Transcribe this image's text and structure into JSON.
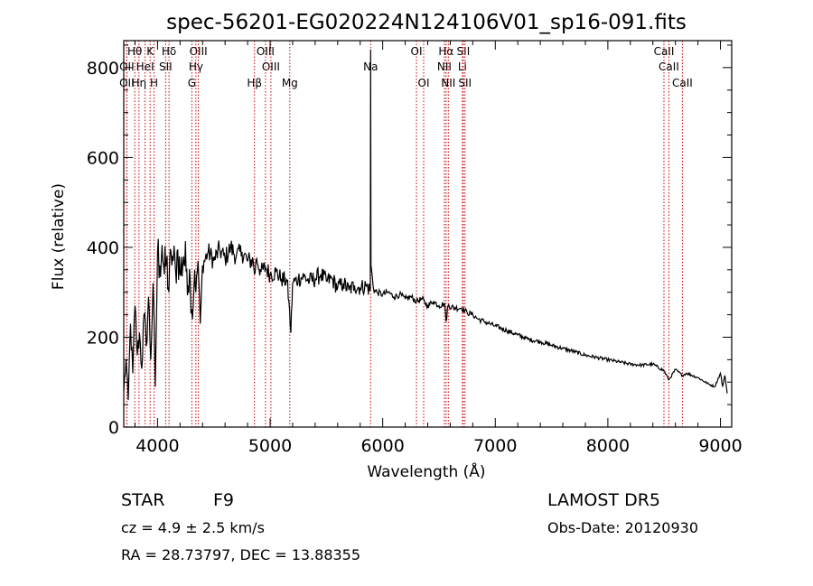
{
  "chart_data": {
    "type": "line",
    "title": "spec-56201-EG020224N124106V01_sp16-091.fits",
    "xlabel": "Wavelength (Å)",
    "ylabel": "Flux (relative)",
    "xlim": [
      3700,
      9100
    ],
    "ylim": [
      0,
      860
    ],
    "xticks": [
      4000,
      5000,
      6000,
      7000,
      8000,
      9000
    ],
    "yticks": [
      0,
      200,
      400,
      600,
      800
    ],
    "line_color": "#000000",
    "marker_color": "#cc0000",
    "spectrum_points": [
      [
        3700,
        80
      ],
      [
        3720,
        150
      ],
      [
        3740,
        60
      ],
      [
        3760,
        230
      ],
      [
        3780,
        120
      ],
      [
        3800,
        270
      ],
      [
        3820,
        160
      ],
      [
        3840,
        210
      ],
      [
        3860,
        130
      ],
      [
        3880,
        250
      ],
      [
        3900,
        180
      ],
      [
        3920,
        290
      ],
      [
        3940,
        150
      ],
      [
        3960,
        320
      ],
      [
        3980,
        90
      ],
      [
        4000,
        390
      ],
      [
        4020,
        360
      ],
      [
        4040,
        405
      ],
      [
        4060,
        340
      ],
      [
        4080,
        370
      ],
      [
        4101,
        300
      ],
      [
        4120,
        390
      ],
      [
        4140,
        370
      ],
      [
        4160,
        350
      ],
      [
        4180,
        395
      ],
      [
        4200,
        340
      ],
      [
        4230,
        380
      ],
      [
        4260,
        350
      ],
      [
        4290,
        330
      ],
      [
        4310,
        240
      ],
      [
        4330,
        350
      ],
      [
        4340,
        300
      ],
      [
        4360,
        370
      ],
      [
        4380,
        230
      ],
      [
        4400,
        360
      ],
      [
        4450,
        390
      ],
      [
        4500,
        370
      ],
      [
        4550,
        395
      ],
      [
        4600,
        375
      ],
      [
        4650,
        400
      ],
      [
        4700,
        380
      ],
      [
        4750,
        390
      ],
      [
        4800,
        370
      ],
      [
        4850,
        370
      ],
      [
        4861,
        340
      ],
      [
        4880,
        375
      ],
      [
        4920,
        345
      ],
      [
        4960,
        355
      ],
      [
        5000,
        340
      ],
      [
        5050,
        345
      ],
      [
        5100,
        330
      ],
      [
        5150,
        325
      ],
      [
        5167,
        280
      ],
      [
        5184,
        210
      ],
      [
        5200,
        320
      ],
      [
        5250,
        330
      ],
      [
        5300,
        335
      ],
      [
        5350,
        325
      ],
      [
        5400,
        330
      ],
      [
        5450,
        340
      ],
      [
        5500,
        325
      ],
      [
        5550,
        330
      ],
      [
        5600,
        310
      ],
      [
        5650,
        320
      ],
      [
        5700,
        305
      ],
      [
        5750,
        315
      ],
      [
        5800,
        310
      ],
      [
        5850,
        315
      ],
      [
        5890,
        305
      ],
      [
        5893,
        840
      ],
      [
        5896,
        360
      ],
      [
        5920,
        305
      ],
      [
        5950,
        300
      ],
      [
        6000,
        295
      ],
      [
        6050,
        300
      ],
      [
        6100,
        290
      ],
      [
        6150,
        295
      ],
      [
        6200,
        285
      ],
      [
        6250,
        290
      ],
      [
        6300,
        280
      ],
      [
        6350,
        285
      ],
      [
        6400,
        270
      ],
      [
        6450,
        280
      ],
      [
        6500,
        270
      ],
      [
        6550,
        275
      ],
      [
        6563,
        235
      ],
      [
        6580,
        270
      ],
      [
        6650,
        265
      ],
      [
        6700,
        265
      ],
      [
        6750,
        255
      ],
      [
        6800,
        250
      ],
      [
        6850,
        240
      ],
      [
        6900,
        235
      ],
      [
        6950,
        230
      ],
      [
        7000,
        225
      ],
      [
        7100,
        215
      ],
      [
        7200,
        205
      ],
      [
        7300,
        195
      ],
      [
        7400,
        190
      ],
      [
        7500,
        182
      ],
      [
        7600,
        175
      ],
      [
        7700,
        168
      ],
      [
        7800,
        160
      ],
      [
        7900,
        155
      ],
      [
        8000,
        150
      ],
      [
        8100,
        145
      ],
      [
        8200,
        140
      ],
      [
        8300,
        138
      ],
      [
        8400,
        140
      ],
      [
        8500,
        125
      ],
      [
        8542,
        105
      ],
      [
        8600,
        128
      ],
      [
        8662,
        115
      ],
      [
        8700,
        120
      ],
      [
        8800,
        110
      ],
      [
        8900,
        95
      ],
      [
        8950,
        90
      ],
      [
        9000,
        120
      ],
      [
        9020,
        90
      ],
      [
        9040,
        115
      ],
      [
        9060,
        75
      ]
    ],
    "lines": [
      {
        "label": "Hθ",
        "wave": 3798,
        "row": 1
      },
      {
        "label": "OII",
        "wave": 3727,
        "row": 2
      },
      {
        "label": "OII",
        "wave": 3727,
        "row": 3
      },
      {
        "label": "HeI",
        "wave": 3889,
        "row": 2
      },
      {
        "label": "Hη",
        "wave": 3835,
        "row": 3
      },
      {
        "label": "K",
        "wave": 3934,
        "row": 1
      },
      {
        "label": "H",
        "wave": 3969,
        "row": 3
      },
      {
        "label": "SII",
        "wave": 4072,
        "row": 2
      },
      {
        "label": "Hδ",
        "wave": 4102,
        "row": 1
      },
      {
        "label": "OIII",
        "wave": 4363,
        "row": 1
      },
      {
        "label": "Hγ",
        "wave": 4341,
        "row": 2
      },
      {
        "label": "G",
        "wave": 4305,
        "row": 3
      },
      {
        "label": "OIII",
        "wave": 4959,
        "row": 1
      },
      {
        "label": "OIII",
        "wave": 5007,
        "row": 2
      },
      {
        "label": "Hβ",
        "wave": 4861,
        "row": 3
      },
      {
        "label": "Mg",
        "wave": 5175,
        "row": 3
      },
      {
        "label": "Na",
        "wave": 5893,
        "row": 2
      },
      {
        "label": "OI",
        "wave": 6300,
        "row": 1
      },
      {
        "label": "OI",
        "wave": 6364,
        "row": 3
      },
      {
        "label": "Hα",
        "wave": 6563,
        "row": 1
      },
      {
        "label": "NII",
        "wave": 6548,
        "row": 2
      },
      {
        "label": "NII",
        "wave": 6583,
        "row": 3
      },
      {
        "label": "SII",
        "wave": 6716,
        "row": 1
      },
      {
        "label": "Li",
        "wave": 6708,
        "row": 2
      },
      {
        "label": "SII",
        "wave": 6731,
        "row": 3
      },
      {
        "label": "CaII",
        "wave": 8498,
        "row": 1
      },
      {
        "label": "CaII",
        "wave": 8542,
        "row": 2
      },
      {
        "label": "CaII",
        "wave": 8662,
        "row": 3
      }
    ]
  },
  "info": {
    "object_class": "STAR",
    "subclass": "F9",
    "survey": "LAMOST DR5",
    "redshift_line": "cz = 4.9 ± 2.5 km/s",
    "obs_date": "Obs-Date: 20120930",
    "coords": "RA =  28.73797, DEC =  13.88355"
  }
}
